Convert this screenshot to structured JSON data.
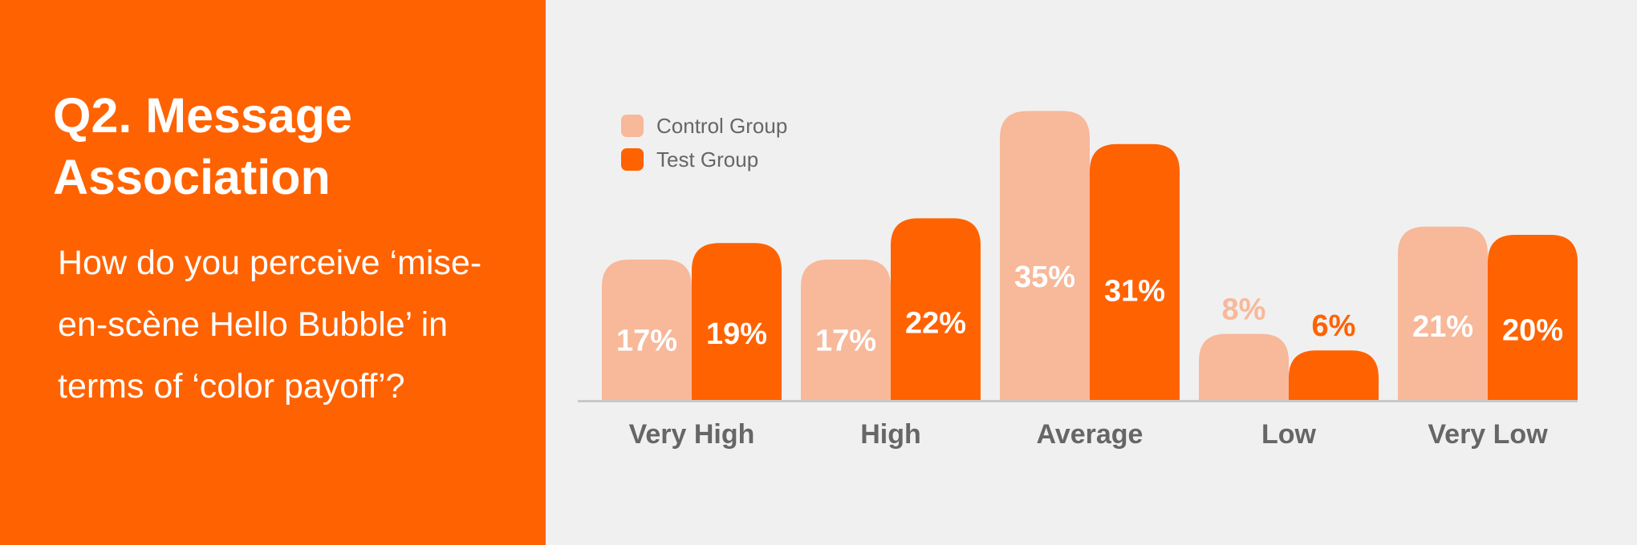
{
  "panel": {
    "title": "Q2. Message Association",
    "question": "How do you perceive ‘mise-en-scène Hello Bubble’ in terms of ‘color payoff’?",
    "background_color": "#ff6200"
  },
  "colors": {
    "control": "#f8b89a",
    "test": "#ff6200",
    "axis_label": "#666666",
    "axis_line": "#c8c8c8",
    "inside_label": "#ffffff"
  },
  "legend": [
    {
      "name": "Control Group",
      "color": "#f8b89a"
    },
    {
      "name": "Test Group",
      "color": "#ff6200"
    }
  ],
  "chart_data": {
    "type": "bar",
    "categories": [
      "Very High",
      "High",
      "Average",
      "Low",
      "Very Low"
    ],
    "series": [
      {
        "name": "Control Group",
        "values": [
          17,
          17,
          35,
          8,
          21
        ],
        "labels": [
          "17%",
          "17%",
          "35%",
          "8%",
          "21%"
        ]
      },
      {
        "name": "Test Group",
        "values": [
          19,
          22,
          31,
          6,
          20
        ],
        "labels": [
          "19%",
          "22%",
          "31%",
          "6%",
          "20%"
        ]
      }
    ],
    "title": "",
    "xlabel": "",
    "ylabel": "",
    "ylim": [
      0,
      35
    ],
    "grid": false,
    "legend_position": "top-left"
  }
}
